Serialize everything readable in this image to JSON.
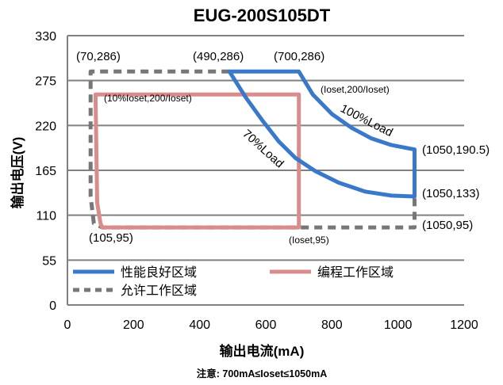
{
  "chart_data": {
    "type": "line",
    "title": "EUG-200S105DT",
    "xlabel": "输出电流(mA)",
    "ylabel": "输出电压(V)",
    "xlim": [
      0,
      1200
    ],
    "ylim": [
      0,
      330
    ],
    "xticks": [
      "0",
      "200",
      "400",
      "600",
      "800",
      "1000",
      "1200"
    ],
    "yticks": [
      "0",
      "55",
      "110",
      "165",
      "220",
      "275",
      "330"
    ],
    "grid": "horizontal",
    "colors": {
      "performance": "#3a78c9",
      "programming": "#d98c8c",
      "allowed": "#777777",
      "grid": "#808080"
    },
    "series": [
      {
        "name": "性能良好区域",
        "style": "solid",
        "segments": [
          [
            [
              490,
              286
            ],
            [
              700,
              286
            ],
            [
              742,
              258
            ],
            [
              800,
              234
            ],
            [
              860,
              217
            ],
            [
              920,
              204
            ],
            [
              980,
              196
            ],
            [
              1050,
              190.5
            ],
            [
              1050,
              133
            ],
            [
              980,
              134
            ],
            [
              900,
              139
            ],
            [
              820,
              150
            ],
            [
              750,
              164
            ],
            [
              690,
              180
            ],
            [
              640,
              200
            ],
            [
              590,
              226
            ],
            [
              540,
              254
            ],
            [
              490,
              286
            ]
          ]
        ]
      },
      {
        "name": "编程工作区域",
        "style": "solid",
        "segments": [
          [
            [
              700,
              258
            ],
            [
              700,
              95
            ],
            [
              105,
              95
            ],
            [
              100,
              100
            ],
            [
              90,
              125
            ],
            [
              85,
              258
            ],
            [
              700,
              258
            ]
          ]
        ]
      },
      {
        "name": "允许工作区域",
        "style": "dashed",
        "segments": [
          [
            [
              490,
              286
            ],
            [
              70,
              286
            ],
            [
              70,
              133
            ],
            [
              80,
              100
            ],
            [
              105,
              95
            ],
            [
              1050,
              95
            ],
            [
              1050,
              133
            ]
          ]
        ]
      }
    ],
    "annotations": [
      {
        "text": "(70,286)"
      },
      {
        "text": "(490,286)"
      },
      {
        "text": "(700,286)"
      },
      {
        "text": "(Ioset,200/Ioset)"
      },
      {
        "text": "100%Load"
      },
      {
        "text": "70%Load"
      },
      {
        "text": "(10%Ioset,200/Ioset)"
      },
      {
        "text": "(1050,190.5)"
      },
      {
        "text": "(1050,133)"
      },
      {
        "text": "(105,95)"
      },
      {
        "text": "(Ioset,95)"
      },
      {
        "text": "(1050,95)"
      }
    ],
    "legend_placement": "bottom-inside",
    "note": "注意:  700mA≤Ioset≤1050mA"
  }
}
